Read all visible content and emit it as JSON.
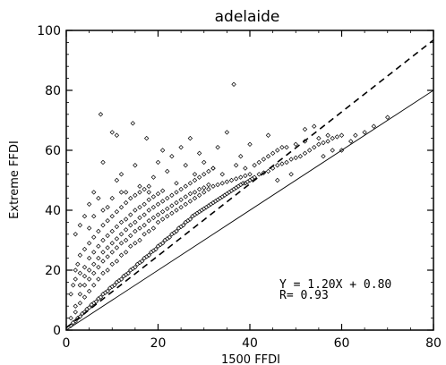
{
  "chart_data": {
    "type": "scatter",
    "title": "adelaide",
    "xlabel": "1500 FFDI",
    "ylabel": "Extreme FFDI",
    "xlim": [
      0,
      80
    ],
    "ylim": [
      0,
      100
    ],
    "xticks": [
      "0",
      "20",
      "40",
      "60",
      "80"
    ],
    "yticks": [
      "0",
      "20",
      "40",
      "60",
      "80",
      "100"
    ],
    "grid": false,
    "marker": "diamond-open",
    "series": [
      {
        "points": [
          [
            1,
            1.5
          ],
          [
            1.5,
            2.5
          ],
          [
            2,
            3
          ],
          [
            2.5,
            4
          ],
          [
            3,
            4.5
          ],
          [
            3.5,
            5.5
          ],
          [
            4,
            6
          ],
          [
            4.5,
            7
          ],
          [
            5,
            7.5
          ],
          [
            5.5,
            8.5
          ],
          [
            6,
            9
          ],
          [
            6.5,
            9.5
          ],
          [
            7,
            10.5
          ],
          [
            7.5,
            11
          ],
          [
            8,
            12
          ],
          [
            8.5,
            12.5
          ],
          [
            9,
            13
          ],
          [
            9.5,
            14
          ],
          [
            10,
            14.5
          ],
          [
            10.5,
            15
          ],
          [
            11,
            16
          ],
          [
            11.5,
            16.5
          ],
          [
            12,
            17
          ],
          [
            12.5,
            18
          ],
          [
            13,
            18.5
          ],
          [
            13.5,
            19
          ],
          [
            14,
            20
          ],
          [
            14.5,
            20.5
          ],
          [
            15,
            21
          ],
          [
            15.5,
            22
          ],
          [
            16,
            22.5
          ],
          [
            16.5,
            23
          ],
          [
            17,
            24
          ],
          [
            17.5,
            24.5
          ],
          [
            18,
            25
          ],
          [
            18.5,
            26
          ],
          [
            19,
            26.5
          ],
          [
            19.5,
            27
          ],
          [
            20,
            28
          ],
          [
            20.5,
            28.5
          ],
          [
            21,
            29
          ],
          [
            21.5,
            30
          ],
          [
            22,
            30.5
          ],
          [
            22.5,
            31
          ],
          [
            23,
            32
          ],
          [
            23.5,
            32.5
          ],
          [
            24,
            33
          ],
          [
            24.5,
            34
          ],
          [
            25,
            34.5
          ],
          [
            25.5,
            35
          ],
          [
            26,
            36
          ],
          [
            26.5,
            36.5
          ],
          [
            27,
            37
          ],
          [
            27.5,
            38
          ],
          [
            28,
            38.5
          ],
          [
            28.5,
            39
          ],
          [
            29,
            39.5
          ],
          [
            29.5,
            40
          ],
          [
            30,
            40.5
          ],
          [
            30.5,
            41
          ],
          [
            31,
            41.5
          ],
          [
            31.5,
            42
          ],
          [
            32,
            42.5
          ],
          [
            32.5,
            43
          ],
          [
            33,
            43.5
          ],
          [
            33.5,
            44
          ],
          [
            34,
            44.5
          ],
          [
            34.5,
            45
          ],
          [
            35,
            45.5
          ],
          [
            35.5,
            46
          ],
          [
            36,
            46.5
          ],
          [
            36.5,
            47
          ],
          [
            37,
            47.5
          ],
          [
            37.5,
            48
          ],
          [
            38,
            48.5
          ],
          [
            38.5,
            49
          ],
          [
            39,
            49
          ],
          [
            39.5,
            49.5
          ],
          [
            40,
            50
          ],
          [
            40.5,
            50.5
          ],
          [
            1,
            4
          ],
          [
            2,
            6
          ],
          [
            3,
            9
          ],
          [
            4,
            11
          ],
          [
            5,
            13
          ],
          [
            6,
            15
          ],
          [
            7,
            17
          ],
          [
            8,
            19
          ],
          [
            9,
            20
          ],
          [
            10,
            22
          ],
          [
            11,
            23
          ],
          [
            12,
            25
          ],
          [
            13,
            26
          ],
          [
            14,
            28
          ],
          [
            15,
            29
          ],
          [
            16,
            30
          ],
          [
            17,
            32
          ],
          [
            18,
            33
          ],
          [
            19,
            34
          ],
          [
            20,
            36
          ],
          [
            21,
            37
          ],
          [
            22,
            38
          ],
          [
            23,
            39
          ],
          [
            24,
            40
          ],
          [
            25,
            41
          ],
          [
            26,
            42
          ],
          [
            27,
            43
          ],
          [
            28,
            44
          ],
          [
            29,
            45
          ],
          [
            30,
            46
          ],
          [
            31,
            47
          ],
          [
            32,
            48
          ],
          [
            33,
            48.5
          ],
          [
            34,
            49
          ],
          [
            35,
            49.5
          ],
          [
            36,
            50
          ],
          [
            37,
            50.5
          ],
          [
            38,
            51
          ],
          [
            39,
            51.5
          ],
          [
            40,
            52
          ],
          [
            2,
            8
          ],
          [
            3,
            12
          ],
          [
            4,
            15
          ],
          [
            5,
            17
          ],
          [
            6,
            19
          ],
          [
            7,
            21
          ],
          [
            8,
            23
          ],
          [
            9,
            24.5
          ],
          [
            10,
            26
          ],
          [
            11,
            27.5
          ],
          [
            12,
            29
          ],
          [
            13,
            30
          ],
          [
            14,
            31.5
          ],
          [
            15,
            33
          ],
          [
            16,
            34
          ],
          [
            17,
            35
          ],
          [
            18,
            36.5
          ],
          [
            19,
            37.5
          ],
          [
            20,
            38.5
          ],
          [
            21,
            39.5
          ],
          [
            22,
            40.5
          ],
          [
            23,
            41.5
          ],
          [
            24,
            42.5
          ],
          [
            25,
            43.5
          ],
          [
            26,
            44.5
          ],
          [
            27,
            45.5
          ],
          [
            28,
            46
          ],
          [
            29,
            47
          ],
          [
            30,
            47.5
          ],
          [
            31,
            48.5
          ],
          [
            3,
            15
          ],
          [
            4,
            18
          ],
          [
            5,
            20
          ],
          [
            6,
            22
          ],
          [
            7,
            24
          ],
          [
            8,
            26
          ],
          [
            9,
            27.5
          ],
          [
            10,
            29
          ],
          [
            11,
            30.5
          ],
          [
            12,
            32
          ],
          [
            13,
            33.5
          ],
          [
            14,
            35
          ],
          [
            15,
            36
          ],
          [
            16,
            37.5
          ],
          [
            17,
            38.5
          ],
          [
            18,
            40
          ],
          [
            19,
            41
          ],
          [
            20,
            42
          ],
          [
            21,
            43
          ],
          [
            22,
            44
          ],
          [
            23,
            45
          ],
          [
            24,
            46
          ],
          [
            25,
            47
          ],
          [
            26,
            48
          ],
          [
            27,
            49
          ],
          [
            28,
            50
          ],
          [
            29,
            51
          ],
          [
            30,
            52
          ],
          [
            31,
            53
          ],
          [
            32,
            54
          ],
          [
            2,
            17
          ],
          [
            3,
            19
          ],
          [
            4,
            21
          ],
          [
            5,
            24
          ],
          [
            6,
            26
          ],
          [
            7,
            28
          ],
          [
            8,
            30
          ],
          [
            9,
            31.5
          ],
          [
            10,
            33
          ],
          [
            11,
            34.5
          ],
          [
            12,
            36
          ],
          [
            13,
            37
          ],
          [
            14,
            38.5
          ],
          [
            15,
            40
          ],
          [
            16,
            41
          ],
          [
            17,
            42
          ],
          [
            18,
            43.5
          ],
          [
            19,
            44.5
          ],
          [
            20,
            45.5
          ],
          [
            21,
            46.5
          ],
          [
            1,
            12
          ],
          [
            1.5,
            15
          ],
          [
            2,
            20
          ],
          [
            2.5,
            22
          ],
          [
            3,
            25
          ],
          [
            4,
            27
          ],
          [
            5,
            29
          ],
          [
            6,
            31
          ],
          [
            7,
            33
          ],
          [
            8,
            35
          ],
          [
            9,
            36.5
          ],
          [
            10,
            38
          ],
          [
            11,
            39.5
          ],
          [
            12,
            41
          ],
          [
            13,
            42.5
          ],
          [
            14,
            44
          ],
          [
            15,
            45
          ],
          [
            16,
            46
          ],
          [
            17,
            47
          ],
          [
            18,
            48
          ],
          [
            41,
            51
          ],
          [
            42,
            52
          ],
          [
            43,
            52.5
          ],
          [
            44,
            53
          ],
          [
            45,
            54
          ],
          [
            46,
            55
          ],
          [
            47,
            55.5
          ],
          [
            48,
            56
          ],
          [
            49,
            57
          ],
          [
            50,
            57.5
          ],
          [
            51,
            58
          ],
          [
            52,
            59
          ],
          [
            53,
            60
          ],
          [
            54,
            61
          ],
          [
            55,
            62
          ],
          [
            56,
            62.5
          ],
          [
            57,
            63
          ],
          [
            58,
            64
          ],
          [
            59,
            64.5
          ],
          [
            60,
            65
          ],
          [
            41,
            55
          ],
          [
            42,
            56
          ],
          [
            43,
            57
          ],
          [
            44,
            58
          ],
          [
            45,
            59
          ],
          [
            46,
            60
          ],
          [
            48,
            61
          ],
          [
            50,
            62
          ],
          [
            52,
            63
          ],
          [
            55,
            64
          ],
          [
            7.5,
            72
          ],
          [
            10,
            66
          ],
          [
            11,
            65
          ],
          [
            14.5,
            69
          ],
          [
            17.5,
            64
          ],
          [
            21,
            60
          ],
          [
            23,
            58
          ],
          [
            25,
            61
          ],
          [
            27,
            64
          ],
          [
            29,
            59
          ],
          [
            33,
            61
          ],
          [
            35,
            66
          ],
          [
            36.5,
            82
          ],
          [
            38,
            58
          ],
          [
            40,
            62
          ],
          [
            44,
            65
          ],
          [
            47,
            61
          ],
          [
            52,
            67
          ],
          [
            54,
            68
          ],
          [
            57,
            65
          ],
          [
            8,
            56
          ],
          [
            11,
            50
          ],
          [
            12,
            52
          ],
          [
            15,
            55
          ],
          [
            16,
            48
          ],
          [
            19,
            51
          ],
          [
            20,
            56
          ],
          [
            22,
            53
          ],
          [
            24,
            49
          ],
          [
            26,
            55
          ],
          [
            28,
            52
          ],
          [
            30,
            56
          ],
          [
            32,
            54
          ],
          [
            34,
            52
          ],
          [
            37,
            55
          ],
          [
            39,
            54
          ],
          [
            4,
            38
          ],
          [
            5,
            42
          ],
          [
            6,
            46
          ],
          [
            7,
            44
          ],
          [
            9,
            41
          ],
          [
            13,
            46
          ],
          [
            18,
            46
          ],
          [
            2,
            32
          ],
          [
            3,
            35
          ],
          [
            5,
            34
          ],
          [
            6,
            38
          ],
          [
            8,
            40
          ],
          [
            10,
            44
          ],
          [
            12,
            46
          ],
          [
            60,
            60
          ],
          [
            62,
            63
          ],
          [
            63,
            65
          ],
          [
            65,
            66
          ],
          [
            67,
            68
          ],
          [
            70,
            71
          ],
          [
            58,
            60
          ],
          [
            56,
            58
          ],
          [
            46,
            50
          ],
          [
            49,
            52
          ]
        ]
      }
    ],
    "lines": [
      {
        "style": "solid",
        "slope": 1.0,
        "intercept": 0,
        "x_range": [
          0,
          80
        ]
      },
      {
        "style": "dashed",
        "slope": 1.2,
        "intercept": 0.8,
        "x_range": [
          0,
          80
        ]
      }
    ],
    "annotations": [
      "Y =    1.20X + 0.80",
      "R=  0.93"
    ]
  }
}
